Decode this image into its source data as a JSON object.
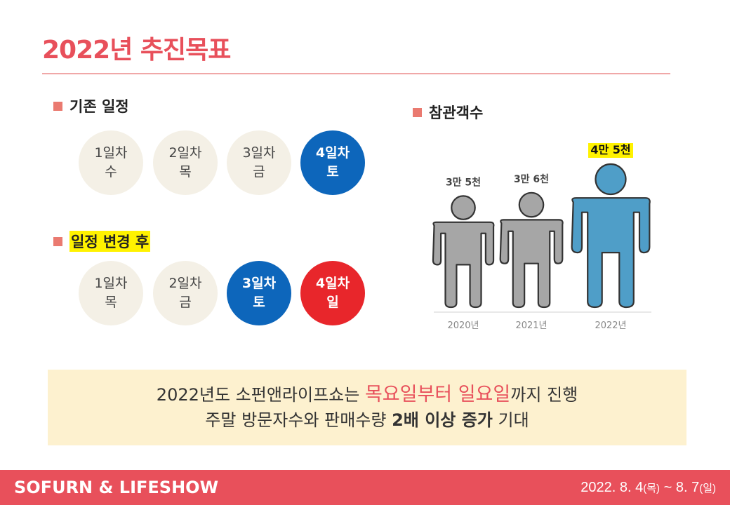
{
  "title": "2022년 추진목표",
  "schedule_old": {
    "heading": "기존 일정",
    "days": [
      {
        "day": "1일차",
        "weekday": "수",
        "style": "plain"
      },
      {
        "day": "2일차",
        "weekday": "목",
        "style": "plain"
      },
      {
        "day": "3일차",
        "weekday": "금",
        "style": "plain"
      },
      {
        "day": "4일차",
        "weekday": "토",
        "style": "blue"
      }
    ]
  },
  "schedule_new": {
    "heading": "일정 변경 후",
    "days": [
      {
        "day": "1일차",
        "weekday": "목",
        "style": "plain"
      },
      {
        "day": "2일차",
        "weekday": "금",
        "style": "plain"
      },
      {
        "day": "3일차",
        "weekday": "토",
        "style": "blue"
      },
      {
        "day": "4일차",
        "weekday": "일",
        "style": "red"
      }
    ]
  },
  "chart_heading": "참관객수",
  "chart_data": {
    "type": "bar",
    "categories": [
      "2020년",
      "2021년",
      "2022년"
    ],
    "values": [
      35000,
      36000,
      45000
    ],
    "value_labels": [
      "3만 5천",
      "3만 6천",
      "4만 5천"
    ],
    "highlighted": "2022년",
    "colors": {
      "default": "#a6a6a6",
      "highlight": "#4f9ec8",
      "label_highlight_bg": "#fff200"
    }
  },
  "summary": {
    "line1_pre": "2022년도 소펀앤라이프쇼는 ",
    "line1_accent": "목요일부터 일요일",
    "line1_post": "까지 진행",
    "line2_pre": "주말 방문자수와 판매수량 ",
    "line2_bold": "2배 이상 증가",
    "line2_post": " 기대"
  },
  "footer": {
    "brand": "SOFURN & LIFESHOW",
    "date_main": "2022. 8. 4",
    "date_day1": "(목)",
    "date_sep": " ~ 8. 7",
    "date_day2": "(일)"
  },
  "colors": {
    "accent": "#e8505b",
    "blue": "#0d66bb",
    "red": "#e8262b",
    "circle_bg": "#f4f0e6",
    "summary_bg": "#fdf1cf"
  }
}
